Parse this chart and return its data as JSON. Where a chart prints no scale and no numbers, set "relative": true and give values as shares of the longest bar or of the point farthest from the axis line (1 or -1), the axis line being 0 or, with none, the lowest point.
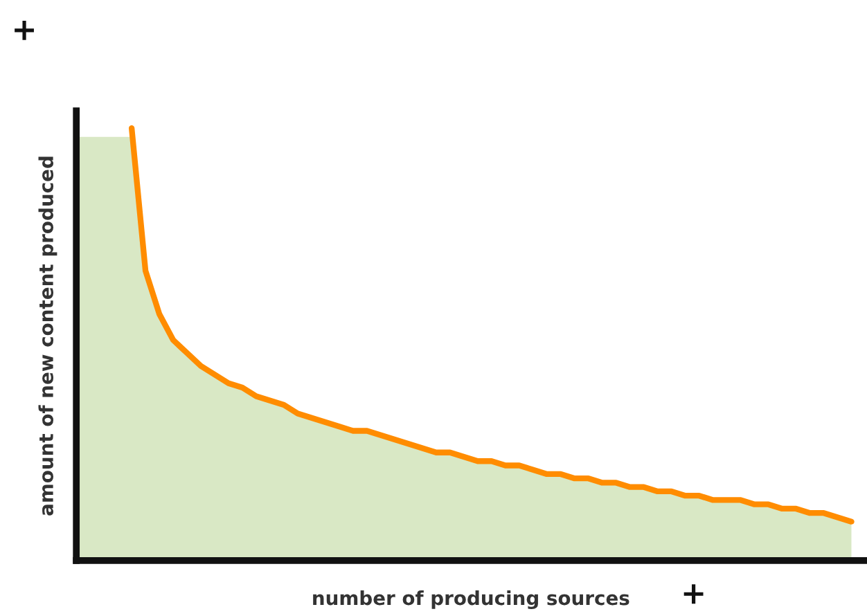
{
  "chart_data": {
    "type": "area",
    "relative": true,
    "xlabel": "number of producing sources",
    "ylabel": "amount of new content produced",
    "categories": [
      null,
      null,
      null,
      null,
      null,
      null,
      null,
      null,
      null,
      null,
      null,
      null,
      null,
      null,
      null,
      null,
      null,
      null,
      null,
      null,
      null,
      null,
      null,
      null,
      null,
      null,
      null,
      null,
      null,
      null,
      null,
      null,
      null,
      null,
      null,
      null,
      null,
      null,
      null,
      null,
      null,
      null,
      null,
      null,
      null,
      null,
      null,
      null,
      null,
      null,
      null,
      null,
      null,
      null,
      null,
      null,
      null
    ],
    "series": [
      {
        "color": "#d9e8c5",
        "values": [
          0.98,
          0.98,
          0.98,
          0.98,
          0.98,
          0.67,
          0.57,
          0.51,
          0.48,
          0.45,
          0.43,
          0.41,
          0.4,
          0.38,
          0.37,
          0.36,
          0.34,
          0.33,
          0.32,
          0.31,
          0.3,
          0.3,
          0.29,
          0.28,
          0.27,
          0.26,
          0.25,
          0.25,
          0.24,
          0.23,
          0.23,
          0.22,
          0.22,
          0.21,
          0.2,
          0.2,
          0.19,
          0.19,
          0.18,
          0.18,
          0.17,
          0.17,
          0.16,
          0.16,
          0.15,
          0.15,
          0.14,
          0.14,
          0.14,
          0.13,
          0.13,
          0.12,
          0.12,
          0.11,
          0.11,
          0.1,
          0.09
        ]
      },
      {
        "type": "line",
        "color": "#ff8c00",
        "values": [
          null,
          null,
          null,
          null,
          1.0,
          0.67,
          0.57,
          0.51,
          0.48,
          0.45,
          0.43,
          0.41,
          0.4,
          0.38,
          0.37,
          0.36,
          0.34,
          0.33,
          0.32,
          0.31,
          0.3,
          0.3,
          0.29,
          0.28,
          0.27,
          0.26,
          0.25,
          0.25,
          0.24,
          0.23,
          0.23,
          0.22,
          0.22,
          0.21,
          0.2,
          0.2,
          0.19,
          0.19,
          0.18,
          0.18,
          0.17,
          0.17,
          0.16,
          0.16,
          0.15,
          0.15,
          0.14,
          0.14,
          0.14,
          0.13,
          0.13,
          0.12,
          0.12,
          0.11,
          0.11,
          0.1,
          0.09
        ]
      }
    ],
    "annotations": [
      "+",
      "+"
    ]
  }
}
